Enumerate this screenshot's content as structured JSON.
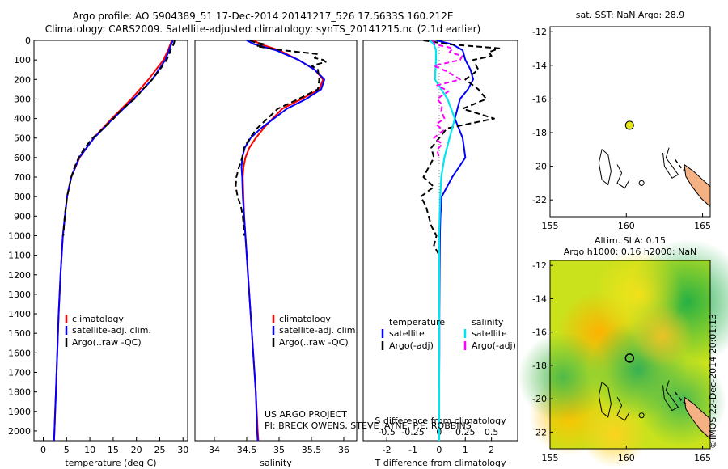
{
  "header": {
    "title_line1": "Argo profile: AO 5904389_51 17-Dec-2014 20141217_526 17.5633S 160.212E",
    "title_line2": "Climatology: CARS2009. Satellite-adjusted climatology: synTS_20141215.nc (2.1d earlier)"
  },
  "credits": {
    "project": "US ARGO PROJECT",
    "pi": "PI: BRECK OWENS, STEVE JAYNE, P.E. ROBBINS",
    "watermark": "©IMOS 22-Dec-2014 20:01:13"
  },
  "colors": {
    "climatology": "#ff0000",
    "satellite": "#0000ff",
    "argo": "#000000",
    "salinity_sat": "#00e5ee",
    "salinity_argo": "#ff00ff",
    "coast": "#000000",
    "land": "#f4b183",
    "argo_marker": "#e6e61a"
  },
  "chart_data": [
    {
      "type": "line",
      "id": "temperature",
      "xlabel": "temperature (deg C)",
      "ylabel": "",
      "xlim": [
        -2,
        31
      ],
      "ylim": [
        2050,
        0
      ],
      "xticks": [
        "0",
        "5",
        "10",
        "15",
        "20",
        "25",
        "30"
      ],
      "yticks": [
        "0",
        "100",
        "200",
        "300",
        "400",
        "500",
        "600",
        "700",
        "800",
        "900",
        "1000",
        "1100",
        "1200",
        "1300",
        "1400",
        "1500",
        "1600",
        "1700",
        "1800",
        "1900",
        "2000"
      ],
      "legend": [
        "climatology",
        "satellite-adj. clim.",
        "Argo(..raw -QC)"
      ],
      "series": [
        {
          "name": "climatology",
          "depth": [
            0,
            50,
            100,
            200,
            300,
            400,
            500,
            600,
            700,
            800,
            1000,
            1200,
            1400,
            1600,
            1800,
            2000,
            2050
          ],
          "values": [
            27.6,
            26.8,
            25.8,
            22.6,
            18.9,
            14.7,
            10.8,
            7.8,
            6.0,
            5.1,
            4.2,
            3.7,
            3.3,
            3.0,
            2.7,
            2.4,
            2.3
          ]
        },
        {
          "name": "satellite-adj. clim.",
          "depth": [
            0,
            50,
            100,
            200,
            300,
            400,
            500,
            600,
            700,
            800,
            1000,
            1200,
            1400,
            1600,
            1800,
            2000,
            2050
          ],
          "values": [
            27.8,
            27.0,
            26.2,
            23.4,
            19.4,
            15.0,
            10.9,
            7.7,
            6.0,
            5.1,
            4.2,
            3.7,
            3.3,
            3.0,
            2.7,
            2.4,
            2.3
          ]
        },
        {
          "name": "Argo(..raw -QC)",
          "depth": [
            0,
            20,
            40,
            60,
            100,
            150,
            200,
            250,
            300,
            350,
            400,
            450,
            500,
            550,
            600,
            650,
            700,
            800,
            900,
            1000
          ],
          "values": [
            28.2,
            28.0,
            27.5,
            27.2,
            26.5,
            25.0,
            23.4,
            21.4,
            19.6,
            17.0,
            15.1,
            12.9,
            10.6,
            8.9,
            7.6,
            6.7,
            6.0,
            5.1,
            4.6,
            4.3
          ]
        }
      ]
    },
    {
      "type": "line",
      "id": "salinity",
      "xlabel": "salinity",
      "xlim": [
        33.7,
        36.2
      ],
      "ylim": [
        2050,
        0
      ],
      "xticks": [
        "34",
        "34.5",
        "35",
        "35.5",
        "36"
      ],
      "legend": [
        "climatology",
        "satellite-adj. clim.",
        "Argo(..raw -QC)"
      ],
      "series": [
        {
          "name": "climatology",
          "depth": [
            0,
            20,
            50,
            100,
            150,
            200,
            250,
            300,
            350,
            400,
            450,
            500,
            550,
            600,
            650,
            700,
            800,
            900,
            1000,
            1200,
            1400,
            1600,
            1800,
            2000,
            2050
          ],
          "values": [
            34.6,
            34.72,
            35.0,
            35.3,
            35.55,
            35.68,
            35.62,
            35.35,
            35.05,
            34.9,
            34.76,
            34.64,
            34.54,
            34.48,
            34.45,
            34.44,
            34.45,
            34.46,
            34.48,
            34.52,
            34.56,
            34.6,
            34.64,
            34.67,
            34.68
          ]
        },
        {
          "name": "satellite-adj. clim.",
          "depth": [
            0,
            20,
            50,
            100,
            150,
            200,
            250,
            300,
            350,
            400,
            450,
            500,
            550,
            600,
            650,
            700,
            800,
            900,
            1000,
            1200,
            1400,
            1600,
            1800,
            2000,
            2050
          ],
          "values": [
            34.5,
            34.62,
            34.95,
            35.3,
            35.55,
            35.7,
            35.65,
            35.42,
            35.12,
            34.92,
            34.72,
            34.56,
            34.47,
            34.43,
            34.42,
            34.43,
            34.44,
            34.46,
            34.48,
            34.52,
            34.56,
            34.6,
            34.64,
            34.66,
            34.67
          ]
        },
        {
          "name": "Argo(..raw -QC)",
          "depth": [
            0,
            10,
            20,
            30,
            50,
            70,
            90,
            100,
            110,
            130,
            150,
            200,
            250,
            300,
            350,
            400,
            450,
            500,
            550,
            600,
            650,
            700,
            750,
            800,
            850,
            900,
            1000
          ],
          "values": [
            34.55,
            34.63,
            34.78,
            34.65,
            35.05,
            35.6,
            35.55,
            35.68,
            35.72,
            35.5,
            35.6,
            35.62,
            35.6,
            35.3,
            34.98,
            34.82,
            34.66,
            34.55,
            34.46,
            34.43,
            34.38,
            34.34,
            34.33,
            34.36,
            34.41,
            34.44,
            34.46
          ]
        }
      ]
    },
    {
      "type": "line",
      "id": "difference",
      "xlabel": "T difference from climatology",
      "top_label": "S difference from climatology",
      "xlim": [
        -2.9,
        3.0
      ],
      "ylim": [
        2050,
        0
      ],
      "xticks": [
        "-2",
        "-1",
        "0",
        "1",
        "2"
      ],
      "top_ticks": [
        "-0.5",
        "-0.25",
        "0",
        "0.25",
        "0.5"
      ],
      "legend_temperature_title": "temperature",
      "legend_salinity_title": "salinity",
      "legend": [
        "satellite",
        "Argo(-adj)",
        "satellite",
        "Argo(-adj)"
      ],
      "series": [
        {
          "name": "temperature satellite",
          "depth": [
            0,
            20,
            50,
            100,
            150,
            200,
            250,
            300,
            400,
            500,
            600,
            700,
            800,
            900,
            1000,
            1200,
            1400,
            1600,
            1800,
            2000,
            2050
          ],
          "values": [
            -0.1,
            0.5,
            0.9,
            1.0,
            1.2,
            1.3,
            1.1,
            0.8,
            0.6,
            0.9,
            1.0,
            0.5,
            0.1,
            0.05,
            0.03,
            0.02,
            0.01,
            0.01,
            0.0,
            0.0,
            0.0
          ]
        },
        {
          "name": "temperature Argo(-adj)",
          "depth": [
            0,
            20,
            40,
            60,
            80,
            100,
            150,
            200,
            250,
            300,
            350,
            400,
            450,
            500,
            550,
            600,
            650,
            700,
            750,
            800,
            850,
            900,
            950,
            1000,
            1050,
            1100
          ],
          "values": [
            -0.6,
            0.4,
            2.3,
            1.9,
            2.0,
            1.3,
            1.5,
            1.0,
            1.5,
            1.8,
            0.9,
            2.1,
            0.3,
            0.0,
            -0.3,
            -0.2,
            -0.4,
            -0.6,
            -0.2,
            -0.7,
            -0.5,
            -0.4,
            -0.3,
            -0.1,
            -0.2,
            0.0
          ]
        },
        {
          "name": "salinity satellite",
          "depth": [
            0,
            20,
            50,
            100,
            200,
            300,
            400,
            500,
            600,
            700,
            800,
            1000,
            1200,
            1600,
            2000,
            2050
          ],
          "values": [
            -0.09,
            -0.05,
            -0.03,
            -0.03,
            -0.04,
            0.08,
            0.15,
            0.1,
            0.05,
            0.02,
            0.01,
            0.0,
            0.0,
            0.0,
            0.0,
            0.0
          ]
        },
        {
          "name": "salinity Argo(-adj)",
          "depth": [
            0,
            20,
            40,
            60,
            80,
            100,
            130,
            160,
            200,
            230,
            260,
            300,
            330,
            360,
            400,
            430,
            460,
            500,
            530,
            560,
            600
          ],
          "values": [
            -0.06,
            -0.04,
            0.13,
            0.1,
            0.22,
            0.2,
            -0.05,
            0.08,
            0.2,
            -0.02,
            0.09,
            -0.02,
            0.03,
            0.02,
            0.05,
            -0.03,
            0.04,
            -0.05,
            0.03,
            -0.02,
            0.0
          ]
        }
      ]
    },
    {
      "type": "map",
      "id": "sst-map",
      "title": "sat. SST: NaN Argo: 28.9",
      "xlim": [
        155,
        165.5
      ],
      "ylim": [
        -23,
        -11.7
      ],
      "xticks": [
        "155",
        "160",
        "165"
      ],
      "yticks": [
        "-12",
        "-14",
        "-16",
        "-18",
        "-20",
        "-22"
      ],
      "argo_position": {
        "lon": 160.212,
        "lat": -17.5633
      }
    },
    {
      "type": "heatmap",
      "id": "sla-map",
      "title_line1": "Altim. SLA: 0.15",
      "title_line2": "Argo h1000: 0.16 h2000: NaN",
      "xlim": [
        155,
        165.5
      ],
      "ylim": [
        -23,
        -11.7
      ],
      "xticks": [
        "155",
        "160",
        "165"
      ],
      "yticks": [
        "-12",
        "-14",
        "-16",
        "-18",
        "-20",
        "-22"
      ],
      "argo_position": {
        "lon": 160.212,
        "lat": -17.5633
      }
    }
  ]
}
